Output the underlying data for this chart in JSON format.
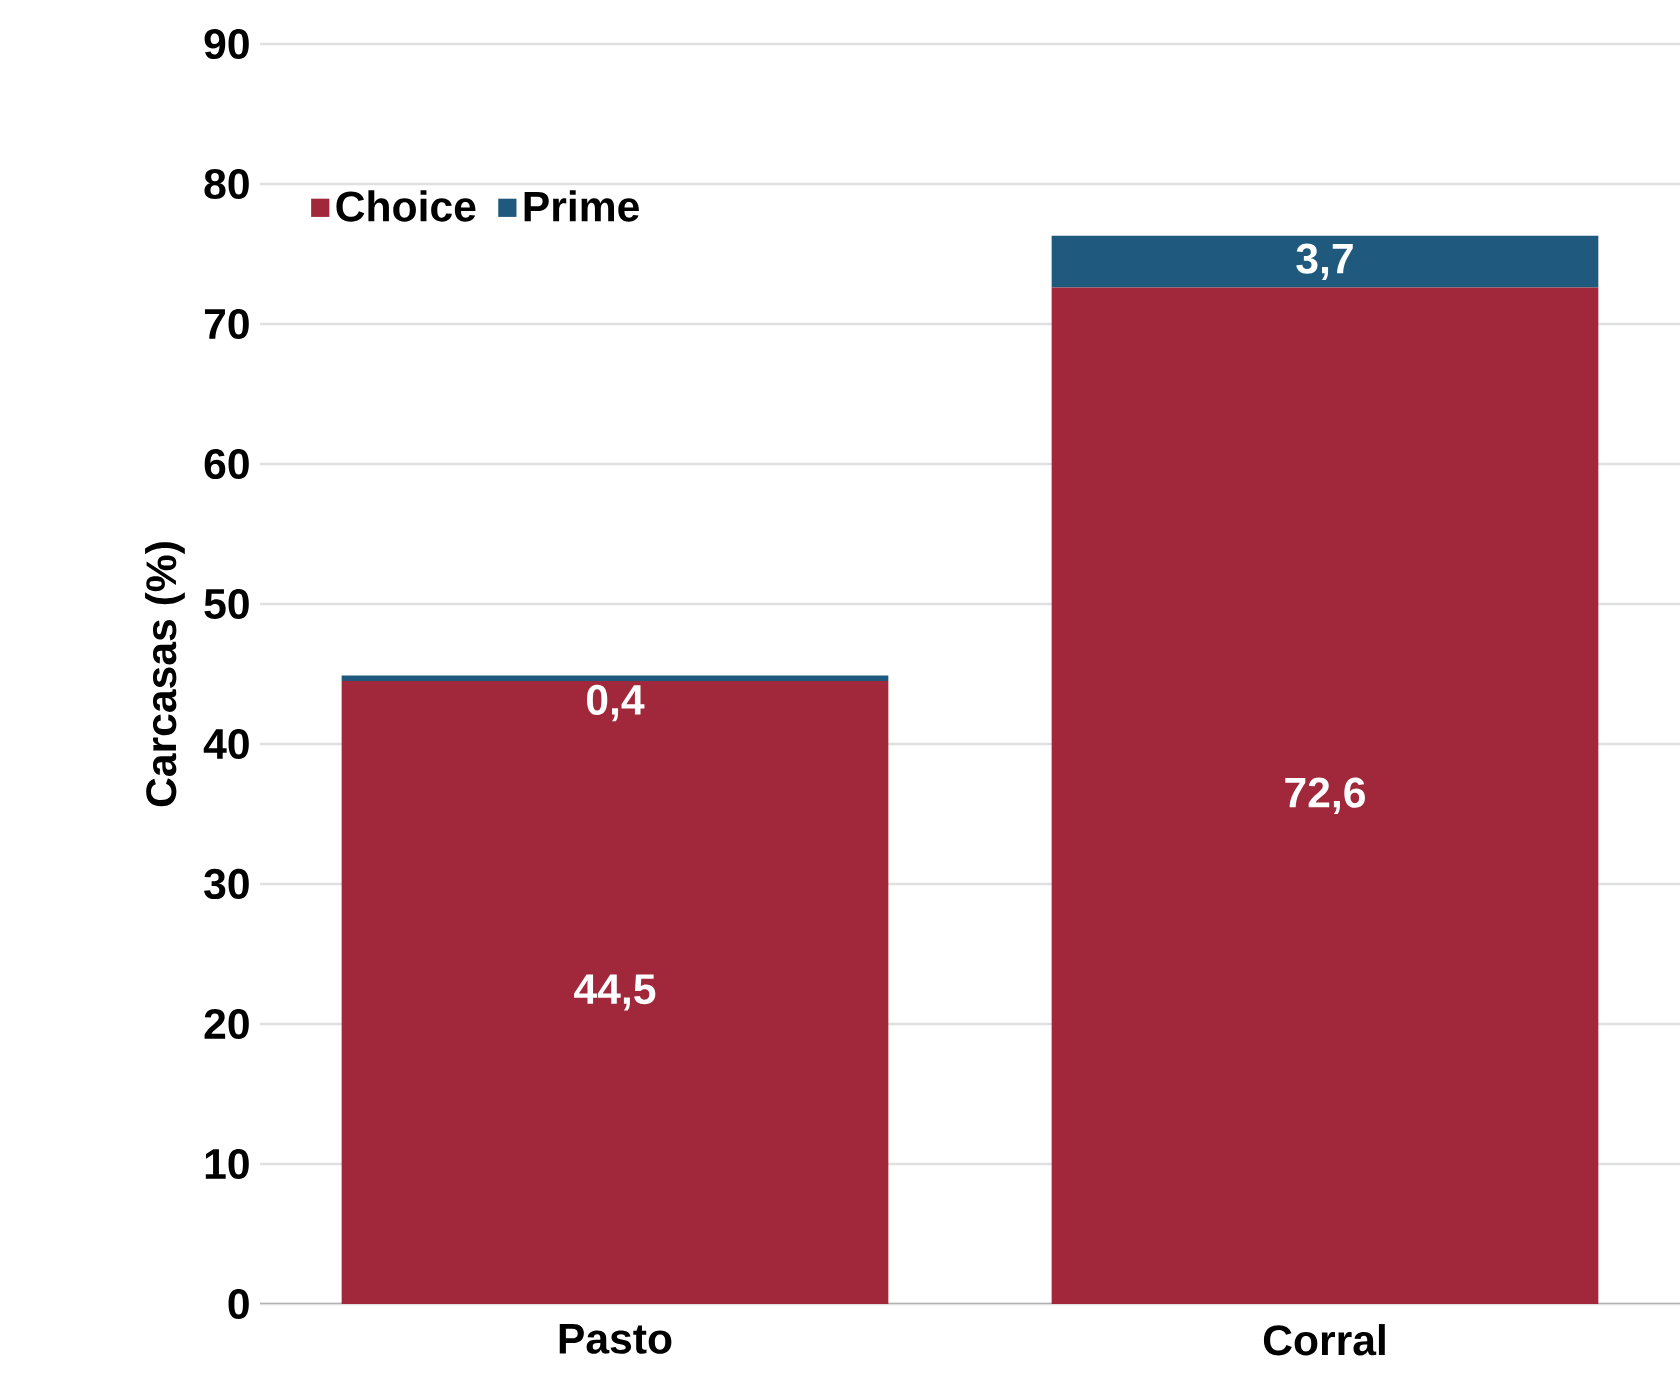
{
  "chart_data": {
    "type": "bar",
    "stacked": true,
    "ylabel": "Carcasas (%)",
    "categories": [
      "Pasto",
      "Corral"
    ],
    "series": [
      {
        "name": "Choice",
        "color": "#a0283a",
        "values": [
          44.5,
          72.6
        ],
        "value_labels": [
          "44,5",
          "72,6"
        ]
      },
      {
        "name": "Prime",
        "color": "#1f5a7e",
        "values": [
          0.4,
          3.7
        ],
        "value_labels": [
          "0,4",
          "3,7"
        ]
      }
    ],
    "ylim": [
      0,
      90
    ],
    "yticks": [
      0,
      10,
      20,
      30,
      40,
      50,
      60,
      70,
      80,
      90
    ],
    "grid": "y",
    "legend": "top left"
  }
}
